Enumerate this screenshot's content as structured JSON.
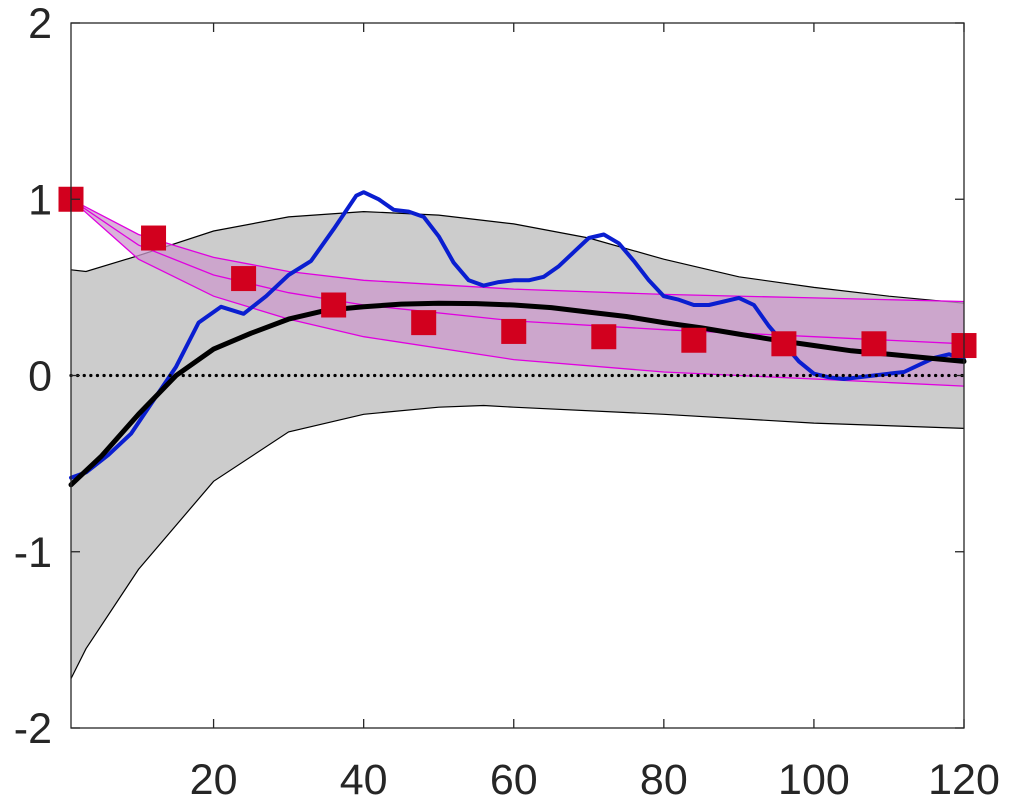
{
  "chart_data": {
    "type": "line",
    "title": "",
    "xlabel": "",
    "ylabel": "",
    "xlim": [
      1,
      120
    ],
    "ylim": [
      -2,
      2
    ],
    "x_ticks": [
      20,
      40,
      60,
      80,
      100,
      120
    ],
    "y_ticks": [
      2,
      1,
      0,
      -1,
      -2
    ],
    "grid": false,
    "legend": "none",
    "colors": {
      "band": "#cccccc",
      "pink_band": "#cc99cc",
      "pink_line": "#e000e0",
      "blue": "#0a1ed0",
      "black": "#000000",
      "markers": "#d2001e",
      "axes": "#262626"
    },
    "series": [
      {
        "kind": "band",
        "upper": [
          [
            1,
            0.6
          ],
          [
            3,
            0.59
          ],
          [
            10,
            0.68
          ],
          [
            20,
            0.82
          ],
          [
            30,
            0.9
          ],
          [
            40,
            0.93
          ],
          [
            50,
            0.91
          ],
          [
            60,
            0.86
          ],
          [
            70,
            0.78
          ],
          [
            80,
            0.66
          ],
          [
            90,
            0.56
          ],
          [
            100,
            0.5
          ],
          [
            110,
            0.45
          ],
          [
            120,
            0.41
          ]
        ],
        "lower": [
          [
            1,
            -1.72
          ],
          [
            3,
            -1.55
          ],
          [
            10,
            -1.1
          ],
          [
            20,
            -0.6
          ],
          [
            30,
            -0.32
          ],
          [
            40,
            -0.22
          ],
          [
            50,
            -0.18
          ],
          [
            56,
            -0.17
          ],
          [
            60,
            -0.18
          ],
          [
            80,
            -0.22
          ],
          [
            100,
            -0.27
          ],
          [
            120,
            -0.3
          ]
        ]
      },
      {
        "kind": "pink-band",
        "upper": [
          [
            1,
            1.0
          ],
          [
            10,
            0.8
          ],
          [
            20,
            0.67
          ],
          [
            30,
            0.59
          ],
          [
            40,
            0.54
          ],
          [
            60,
            0.49
          ],
          [
            80,
            0.46
          ],
          [
            100,
            0.44
          ],
          [
            120,
            0.42
          ]
        ],
        "mid": [
          [
            1,
            1.0
          ],
          [
            10,
            0.74
          ],
          [
            20,
            0.57
          ],
          [
            30,
            0.47
          ],
          [
            40,
            0.4
          ],
          [
            60,
            0.31
          ],
          [
            80,
            0.26
          ],
          [
            100,
            0.22
          ],
          [
            120,
            0.18
          ]
        ],
        "lower": [
          [
            1,
            1.0
          ],
          [
            10,
            0.66
          ],
          [
            20,
            0.45
          ],
          [
            30,
            0.32
          ],
          [
            40,
            0.22
          ],
          [
            60,
            0.09
          ],
          [
            80,
            0.02
          ],
          [
            100,
            -0.02
          ],
          [
            120,
            -0.06
          ]
        ]
      },
      {
        "kind": "line",
        "points": [
          [
            1,
            -0.58
          ],
          [
            3,
            -0.55
          ],
          [
            6,
            -0.45
          ],
          [
            9,
            -0.33
          ],
          [
            12,
            -0.14
          ],
          [
            15,
            0.05
          ],
          [
            18,
            0.3
          ],
          [
            21,
            0.39
          ],
          [
            24,
            0.35
          ],
          [
            27,
            0.45
          ],
          [
            30,
            0.57
          ],
          [
            33,
            0.65
          ],
          [
            36,
            0.83
          ],
          [
            39,
            1.02
          ],
          [
            40,
            1.04
          ],
          [
            42,
            1.0
          ],
          [
            44,
            0.94
          ],
          [
            46,
            0.93
          ],
          [
            48,
            0.9
          ],
          [
            50,
            0.79
          ],
          [
            52,
            0.64
          ],
          [
            54,
            0.54
          ],
          [
            56,
            0.51
          ],
          [
            58,
            0.53
          ],
          [
            60,
            0.54
          ],
          [
            62,
            0.54
          ],
          [
            64,
            0.56
          ],
          [
            66,
            0.62
          ],
          [
            68,
            0.7
          ],
          [
            70,
            0.78
          ],
          [
            72,
            0.8
          ],
          [
            74,
            0.75
          ],
          [
            76,
            0.65
          ],
          [
            78,
            0.54
          ],
          [
            80,
            0.45
          ],
          [
            82,
            0.43
          ],
          [
            84,
            0.4
          ],
          [
            86,
            0.4
          ],
          [
            88,
            0.42
          ],
          [
            90,
            0.44
          ],
          [
            92,
            0.4
          ],
          [
            94,
            0.28
          ],
          [
            96,
            0.18
          ],
          [
            98,
            0.08
          ],
          [
            100,
            0.01
          ],
          [
            102,
            -0.01
          ],
          [
            104,
            -0.02
          ],
          [
            106,
            -0.01
          ],
          [
            108,
            0.0
          ],
          [
            110,
            0.01
          ],
          [
            112,
            0.02
          ],
          [
            114,
            0.06
          ],
          [
            116,
            0.1
          ],
          [
            118,
            0.12
          ],
          [
            120,
            0.09
          ]
        ]
      },
      {
        "kind": "line",
        "points": [
          [
            1,
            -0.62
          ],
          [
            5,
            -0.46
          ],
          [
            10,
            -0.22
          ],
          [
            15,
            0.0
          ],
          [
            20,
            0.15
          ],
          [
            25,
            0.24
          ],
          [
            30,
            0.32
          ],
          [
            35,
            0.37
          ],
          [
            40,
            0.39
          ],
          [
            45,
            0.405
          ],
          [
            50,
            0.41
          ],
          [
            55,
            0.408
          ],
          [
            60,
            0.4
          ],
          [
            65,
            0.385
          ],
          [
            70,
            0.36
          ],
          [
            75,
            0.335
          ],
          [
            80,
            0.3
          ],
          [
            85,
            0.27
          ],
          [
            90,
            0.235
          ],
          [
            95,
            0.2
          ],
          [
            100,
            0.17
          ],
          [
            105,
            0.14
          ],
          [
            110,
            0.12
          ],
          [
            115,
            0.1
          ],
          [
            120,
            0.08
          ]
        ]
      },
      {
        "kind": "hline",
        "y": 0
      },
      {
        "kind": "markers",
        "points": [
          [
            1,
            1.0
          ],
          [
            12,
            0.78
          ],
          [
            24,
            0.55
          ],
          [
            36,
            0.4
          ],
          [
            48,
            0.3
          ],
          [
            60,
            0.25
          ],
          [
            72,
            0.22
          ],
          [
            84,
            0.2
          ],
          [
            96,
            0.18
          ],
          [
            108,
            0.18
          ],
          [
            120,
            0.17
          ]
        ]
      }
    ]
  }
}
